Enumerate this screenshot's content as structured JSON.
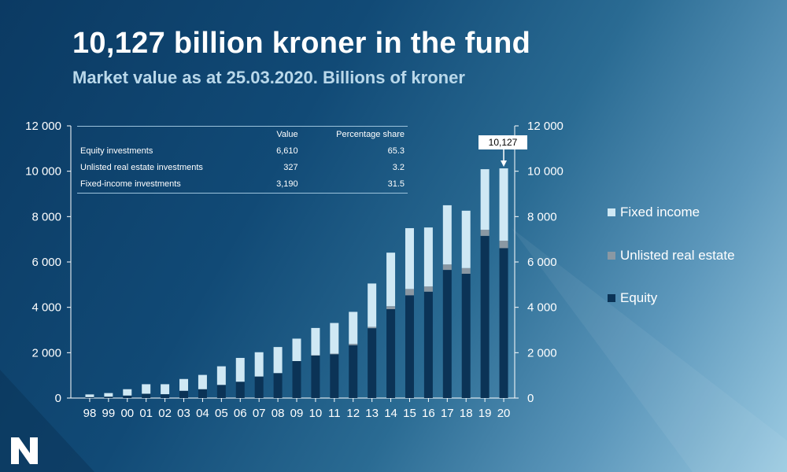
{
  "title": "10,127 billion kroner in the fund",
  "subtitle": "Market value as at 25.03.2020. Billions of kroner",
  "table": {
    "headers": [
      "",
      "Value",
      "Percentage share"
    ],
    "rows": [
      {
        "label": "Equity investments",
        "value": "6,610",
        "share": "65.3"
      },
      {
        "label": "Unlisted real estate investments",
        "value": "327",
        "share": "3.2"
      },
      {
        "label": "Fixed-income investments",
        "value": "3,190",
        "share": "31.5"
      }
    ]
  },
  "callout": "10,127",
  "colors": {
    "equity": "#0b3356",
    "real_estate": "#8a98a3",
    "fixed_income": "#cfe8f4"
  },
  "chart_data": {
    "type": "bar",
    "stacked": true,
    "categories": [
      "98",
      "99",
      "00",
      "01",
      "02",
      "03",
      "04",
      "05",
      "06",
      "07",
      "08",
      "09",
      "10",
      "11",
      "12",
      "13",
      "14",
      "15",
      "16",
      "17",
      "18",
      "19",
      "20"
    ],
    "series": [
      {
        "name": "Equity",
        "values": [
          40,
          60,
          110,
          190,
          170,
          320,
          390,
          580,
          720,
          950,
          1100,
          1630,
          1880,
          1930,
          2330,
          3080,
          3920,
          4530,
          4690,
          5650,
          5480,
          7150,
          6610
        ]
      },
      {
        "name": "Unlisted real estate",
        "values": [
          0,
          0,
          0,
          0,
          0,
          0,
          0,
          0,
          0,
          0,
          0,
          0,
          10,
          30,
          60,
          60,
          130,
          280,
          230,
          240,
          250,
          270,
          327
        ]
      },
      {
        "name": "Fixed income",
        "values": [
          120,
          160,
          280,
          420,
          440,
          520,
          630,
          820,
          1050,
          1070,
          1150,
          990,
          1200,
          1350,
          1410,
          1910,
          2360,
          2680,
          2600,
          2610,
          2530,
          2670,
          3190
        ]
      }
    ],
    "ylim": [
      0,
      12000
    ],
    "yticks": [
      "12 000",
      "10 000",
      "8 000",
      "6 000",
      "4 000",
      "2 000",
      "0"
    ],
    "legend": [
      "Fixed income",
      "Unlisted real estate",
      "Equity"
    ]
  }
}
